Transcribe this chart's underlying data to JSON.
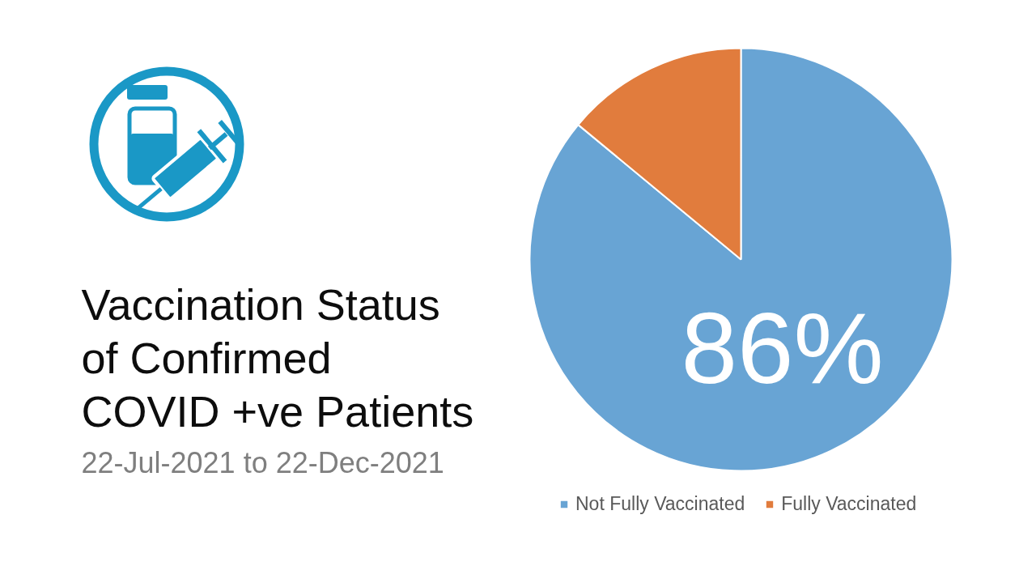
{
  "chart_data": {
    "type": "pie",
    "title": "Vaccination Status\nof Confirmed\nCOVID +ve Patients",
    "subtitle": "22-Jul-2021 to 22-Dec-2021",
    "categories": [
      "Not Fully Vaccinated",
      "Fully Vaccinated"
    ],
    "values": [
      86,
      14
    ],
    "colors": [
      "#68a4d4",
      "#e17c3d"
    ],
    "value_labels": [
      "86%",
      null
    ],
    "legend": "bottom"
  }
}
